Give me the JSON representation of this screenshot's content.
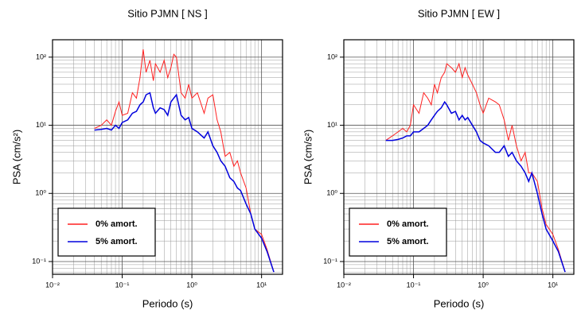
{
  "chart_data": [
    {
      "type": "line",
      "title": "Sitio PJMN [ NS ]",
      "x_label": "Periodo (s)",
      "y_label": "PSA (cm/s²)",
      "x": [
        0.04,
        0.05,
        0.06,
        0.07,
        0.08,
        0.09,
        0.1,
        0.12,
        0.14,
        0.16,
        0.18,
        0.2,
        0.22,
        0.25,
        0.28,
        0.3,
        0.35,
        0.4,
        0.45,
        0.5,
        0.55,
        0.6,
        0.7,
        0.8,
        0.9,
        1.0,
        1.2,
        1.5,
        1.7,
        2.0,
        2.3,
        2.6,
        3.0,
        3.5,
        4.0,
        4.5,
        5.0,
        6.0,
        7.0,
        8.0,
        10,
        12,
        15
      ],
      "series": [
        {
          "name": "0% amort.",
          "color": "#ff2020",
          "values": [
            9,
            10,
            12,
            10,
            16,
            22,
            14,
            15,
            30,
            25,
            50,
            130,
            60,
            90,
            45,
            80,
            60,
            90,
            50,
            70,
            110,
            100,
            30,
            25,
            40,
            25,
            30,
            15,
            25,
            28,
            12,
            8,
            3.5,
            4,
            2.5,
            3,
            2,
            1.2,
            0.5,
            0.3,
            0.25,
            0.15,
            0.07
          ]
        },
        {
          "name": "5% amort.",
          "color": "#0000dd",
          "values": [
            8.5,
            8.7,
            9,
            8.5,
            10,
            9,
            11,
            12,
            15,
            16,
            20,
            22,
            28,
            30,
            18,
            15,
            18,
            17,
            14,
            22,
            25,
            28,
            14,
            12,
            13,
            9,
            8,
            6.5,
            8,
            5,
            4,
            3,
            2.5,
            1.7,
            1.5,
            1.2,
            1.1,
            0.7,
            0.5,
            0.3,
            0.22,
            0.14,
            0.07
          ]
        }
      ],
      "xlim": [
        0.01,
        20
      ],
      "ylim": [
        0.065,
        180
      ],
      "xticks": [
        {
          "value": 0.01,
          "label": "10⁻²"
        },
        {
          "value": 0.1,
          "label": "10⁻¹"
        },
        {
          "value": 1,
          "label": "10⁰"
        },
        {
          "value": 10,
          "label": "10¹"
        }
      ],
      "yticks": [
        {
          "value": 0.1,
          "label": "10⁻¹"
        },
        {
          "value": 1,
          "label": "10⁰"
        },
        {
          "value": 10,
          "label": "10¹"
        },
        {
          "value": 100,
          "label": "10²"
        }
      ],
      "log_x": true,
      "log_y": true,
      "grid": true,
      "legend": "lower left"
    },
    {
      "type": "line",
      "title": "Sitio PJMN [ EW ]",
      "x_label": "Periodo (s)",
      "y_label": "PSA (cm/s²)",
      "x": [
        0.04,
        0.05,
        0.06,
        0.07,
        0.08,
        0.09,
        0.1,
        0.12,
        0.14,
        0.16,
        0.18,
        0.2,
        0.22,
        0.25,
        0.28,
        0.3,
        0.35,
        0.4,
        0.45,
        0.5,
        0.55,
        0.6,
        0.7,
        0.8,
        0.9,
        1.0,
        1.2,
        1.5,
        1.7,
        2.0,
        2.3,
        2.6,
        3.0,
        3.5,
        4.0,
        4.5,
        5.0,
        6.0,
        7.0,
        8.0,
        10,
        12,
        15
      ],
      "series": [
        {
          "name": "0% amort.",
          "color": "#ff2020",
          "values": [
            6,
            7,
            8,
            9,
            8,
            10,
            20,
            15,
            30,
            25,
            20,
            40,
            30,
            50,
            60,
            80,
            70,
            60,
            80,
            50,
            70,
            55,
            40,
            30,
            20,
            15,
            25,
            22,
            20,
            12,
            6,
            10,
            5,
            3,
            4,
            2,
            2,
            1.5,
            0.6,
            0.35,
            0.25,
            0.15,
            0.07
          ]
        },
        {
          "name": "5% amort.",
          "color": "#0000dd",
          "values": [
            6,
            6,
            6.2,
            6.5,
            7,
            7,
            8,
            8,
            9,
            10,
            12,
            14,
            16,
            18,
            22,
            20,
            15,
            16,
            12,
            14,
            12,
            13,
            10,
            8,
            6,
            5.5,
            5,
            4,
            4,
            5,
            3.5,
            4,
            3,
            2.5,
            2,
            1.5,
            2,
            1,
            0.5,
            0.3,
            0.2,
            0.14,
            0.07
          ]
        }
      ],
      "xlim": [
        0.01,
        20
      ],
      "ylim": [
        0.065,
        180
      ],
      "xticks": [
        {
          "value": 0.01,
          "label": "10⁻²"
        },
        {
          "value": 0.1,
          "label": "10⁻¹"
        },
        {
          "value": 1,
          "label": "10⁰"
        },
        {
          "value": 10,
          "label": "10¹"
        }
      ],
      "yticks": [
        {
          "value": 0.1,
          "label": "10⁻¹"
        },
        {
          "value": 1,
          "label": "10⁰"
        },
        {
          "value": 10,
          "label": "10¹"
        },
        {
          "value": 100,
          "label": "10²"
        }
      ],
      "log_x": true,
      "log_y": true,
      "grid": true,
      "legend": "lower left"
    }
  ]
}
